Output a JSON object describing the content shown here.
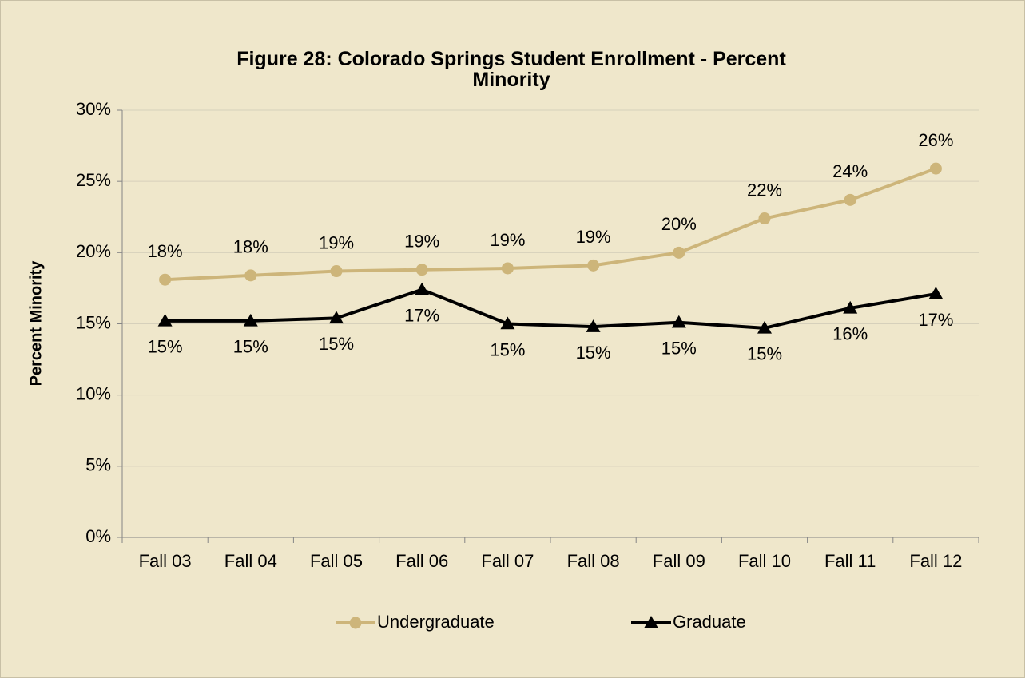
{
  "chart_data": {
    "type": "line",
    "title": "Figure 28: Colorado Springs Student Enrollment - Percent Minority",
    "ylabel": "Percent Minority",
    "categories": [
      "Fall 03",
      "Fall 04",
      "Fall 05",
      "Fall 06",
      "Fall 07",
      "Fall 08",
      "Fall 09",
      "Fall 10",
      "Fall 11",
      "Fall 12"
    ],
    "series": [
      {
        "name": "Undergraduate",
        "color": "#cdb57a",
        "marker": "circle",
        "label_position": "above",
        "values": [
          18.1,
          18.4,
          18.7,
          18.8,
          18.9,
          19.1,
          20.0,
          22.4,
          23.7,
          25.9
        ],
        "value_labels": [
          "18%",
          "18%",
          "19%",
          "19%",
          "19%",
          "19%",
          "20%",
          "22%",
          "24%",
          "26%"
        ]
      },
      {
        "name": "Graduate",
        "color": "#000000",
        "marker": "triangle",
        "label_position": "below",
        "values": [
          15.2,
          15.2,
          15.4,
          17.4,
          15.0,
          14.8,
          15.1,
          14.7,
          16.1,
          17.1
        ],
        "value_labels": [
          "15%",
          "15%",
          "15%",
          "17%",
          "15%",
          "15%",
          "15%",
          "15%",
          "16%",
          "17%"
        ]
      }
    ],
    "ylim": [
      0,
      30
    ],
    "yticks": [
      {
        "value": 0,
        "label": "0%"
      },
      {
        "value": 5,
        "label": "5%"
      },
      {
        "value": 10,
        "label": "10%"
      },
      {
        "value": 15,
        "label": "15%"
      },
      {
        "value": 20,
        "label": "20%"
      },
      {
        "value": 25,
        "label": "25%"
      },
      {
        "value": 30,
        "label": "30%"
      }
    ],
    "grid": true,
    "legend": "bottom"
  }
}
